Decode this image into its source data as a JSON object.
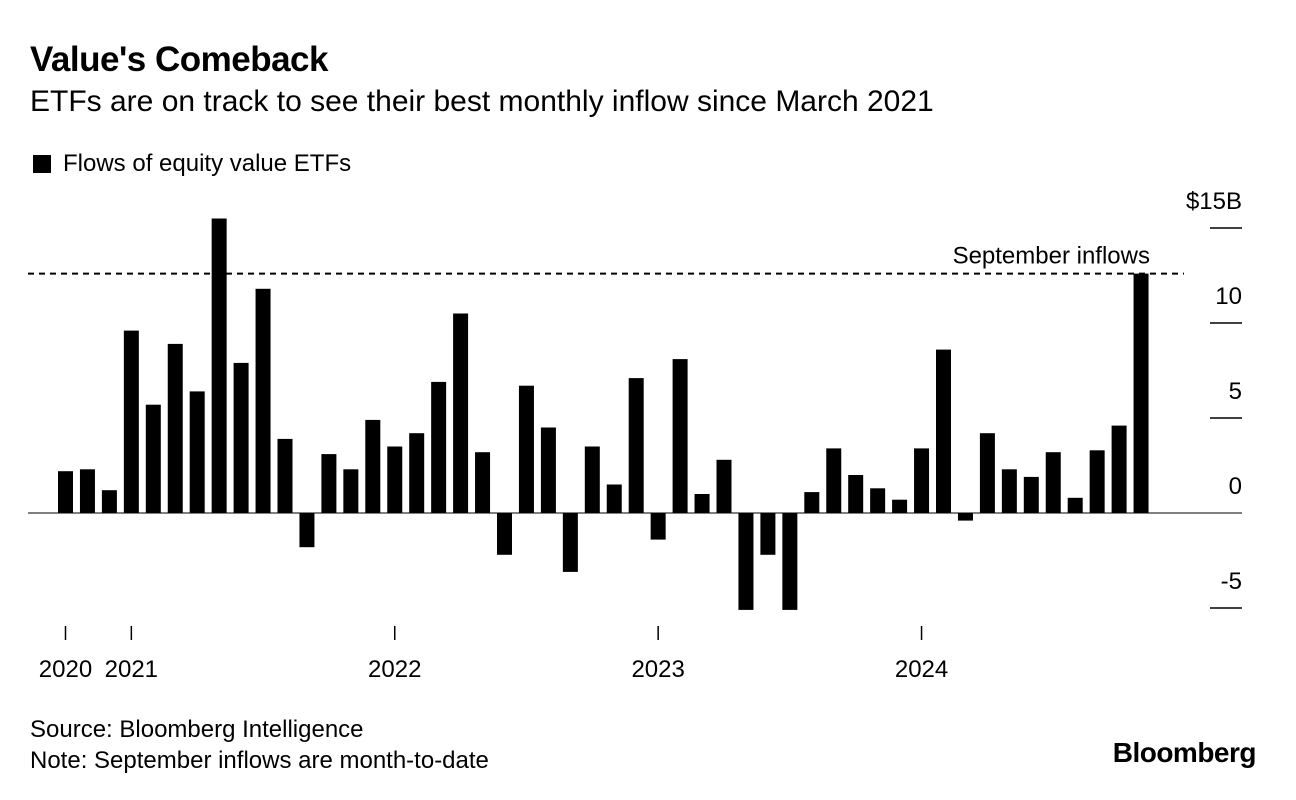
{
  "chart_data": {
    "type": "bar",
    "title": "Value's Comeback",
    "subtitle": "ETFs are on track to see their best monthly inflow since March 2021",
    "legend": [
      {
        "name": "Flows of equity value ETFs",
        "color": "#000000"
      }
    ],
    "legend_position": "top-left",
    "y_axis": {
      "position": "right",
      "ylim": [
        -6,
        15
      ],
      "ticks": [
        {
          "value": 15,
          "label": "$15B"
        },
        {
          "value": 10,
          "label": "10"
        },
        {
          "value": 5,
          "label": "5"
        },
        {
          "value": 0,
          "label": "0"
        },
        {
          "value": -5,
          "label": "-5"
        }
      ]
    },
    "x_axis": {
      "start": "2020-10",
      "tick_labels": [
        "2020",
        "2021",
        "2022",
        "2023",
        "2024"
      ]
    },
    "grid": false,
    "reference_line": {
      "value": 12.6,
      "label": "September inflows",
      "style": "dashed"
    },
    "series": [
      {
        "name": "Flows of equity value ETFs",
        "values": [
          2.2,
          2.3,
          1.2,
          9.6,
          5.7,
          8.9,
          6.4,
          15.5,
          7.9,
          11.8,
          3.9,
          -1.8,
          3.1,
          2.3,
          4.9,
          3.5,
          4.2,
          6.9,
          10.5,
          3.2,
          -2.2,
          6.7,
          4.5,
          -3.1,
          3.5,
          1.5,
          7.1,
          -1.4,
          8.1,
          1.0,
          2.8,
          -5.1,
          -2.2,
          -5.1,
          1.1,
          3.4,
          2.0,
          1.3,
          0.7,
          3.4,
          8.6,
          -0.4,
          4.2,
          2.3,
          1.9,
          3.2,
          0.8,
          3.3,
          4.6,
          12.6
        ]
      }
    ]
  },
  "source_note": "Source: Bloomberg Intelligence",
  "note": "Note: September inflows are month-to-date",
  "brand": "Bloomberg"
}
